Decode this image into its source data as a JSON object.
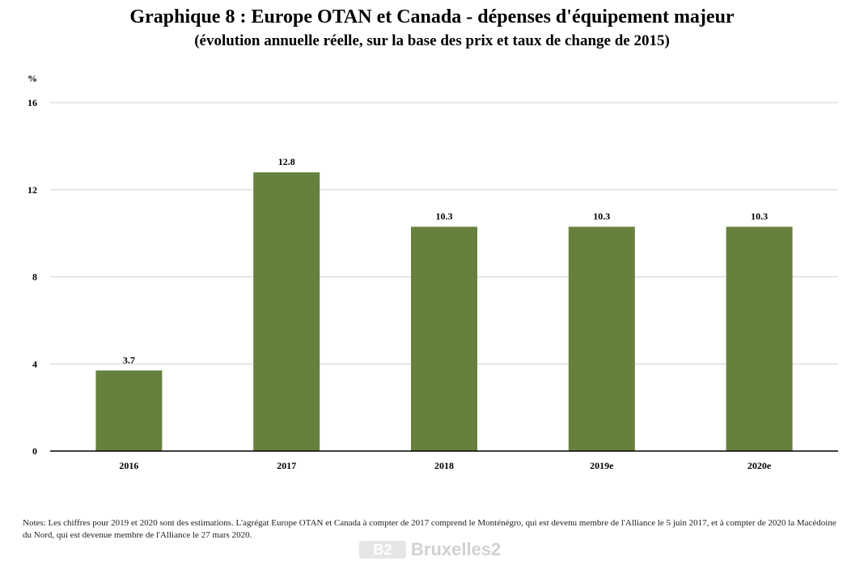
{
  "chart_data": {
    "type": "bar",
    "title": "Graphique 8 : Europe OTAN et Canada - dépenses d'équipement majeur",
    "subtitle": "(évolution annuelle réelle, sur la base des prix et taux de change de 2015)",
    "ylabel": "%",
    "xlabel": "",
    "categories": [
      "2016",
      "2017",
      "2018",
      "2019e",
      "2020e"
    ],
    "values": [
      3.7,
      12.8,
      10.3,
      10.3,
      10.3
    ],
    "value_labels": [
      "3.7",
      "12.8",
      "10.3",
      "10.3",
      "10.3"
    ],
    "ylim": [
      0,
      16
    ],
    "yticks": [
      "0",
      "4",
      "8",
      "12",
      "16"
    ],
    "grid": true,
    "legend": "none",
    "bar_color": "#66813e",
    "grid_color": "#d0d0d0"
  },
  "notes": "Notes: Les chiffres pour 2019 et 2020 sont des estimations. L'agrégat Europe OTAN et Canada à compter de 2017 comprend le Monténégro, qui est devenu membre de l'Alliance le 5 juin 2017, et à compter de 2020 la Macédoine du Nord, qui est devenue membre de l'Alliance le 27 mars 2020.",
  "watermark": {
    "logo_text": "B2",
    "text": "Bruxelles2"
  }
}
